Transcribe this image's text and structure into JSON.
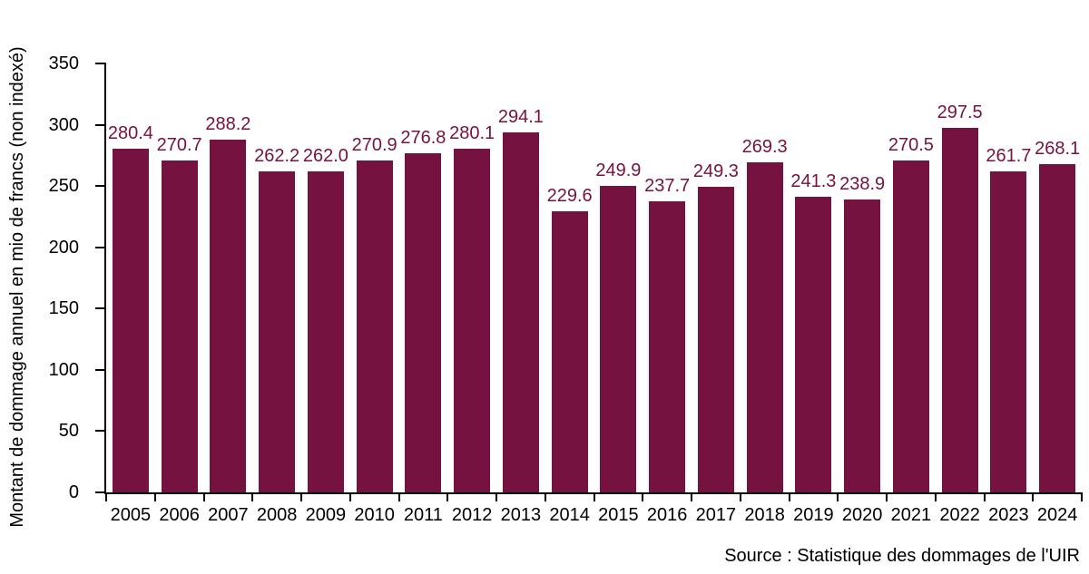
{
  "chart_data": {
    "type": "bar",
    "title": "",
    "categories": [
      "2005",
      "2006",
      "2007",
      "2008",
      "2009",
      "2010",
      "2011",
      "2012",
      "2013",
      "2014",
      "2015",
      "2016",
      "2017",
      "2018",
      "2019",
      "2020",
      "2021",
      "2022",
      "2023",
      "2024"
    ],
    "values": [
      280.4,
      270.7,
      288.2,
      262.2,
      262.0,
      270.9,
      276.8,
      280.1,
      294.1,
      229.6,
      249.9,
      237.7,
      249.3,
      269.3,
      241.3,
      238.9,
      270.5,
      297.5,
      261.7,
      268.1
    ],
    "value_label_decimals": 1,
    "xlabel": "",
    "ylabel": "Montant de dommage annuel en mio de francs (non indexé)",
    "ylim": [
      0,
      350
    ],
    "yticks": [
      0,
      50,
      100,
      150,
      200,
      250,
      300,
      350
    ],
    "grid": false,
    "legend": false,
    "bar_color": "#761240",
    "value_label_color": "#761240",
    "axis_color": "#000000",
    "source": "Source : Statistique des dommages de l'UIR"
  }
}
